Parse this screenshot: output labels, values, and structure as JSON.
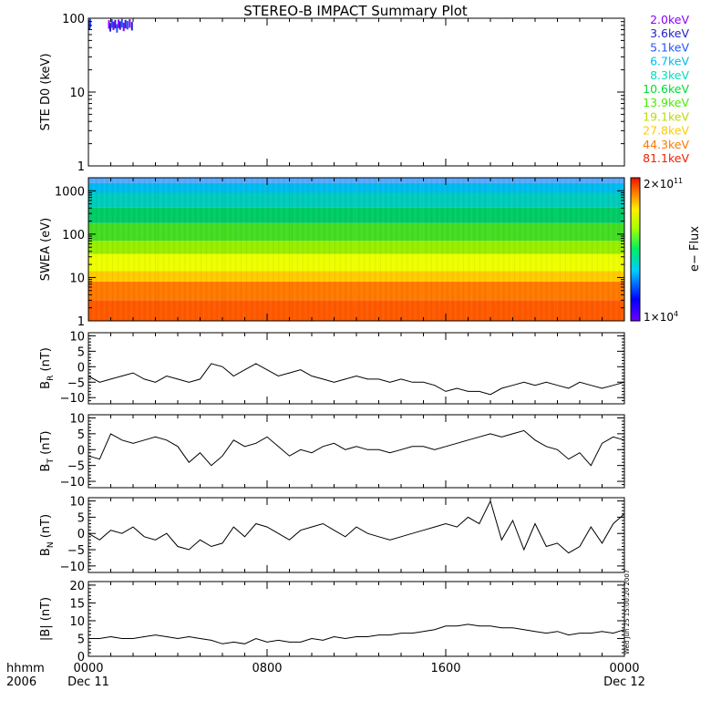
{
  "title": "STEREO-B IMPACT Summary Plot",
  "time_axis": {
    "row1_label": "hhmm",
    "row2_label": "2006",
    "ticks": [
      {
        "hours": 0,
        "label": "0000",
        "date": "Dec 11"
      },
      {
        "hours": 8,
        "label": "0800",
        "date": ""
      },
      {
        "hours": 16,
        "label": "1600",
        "date": ""
      },
      {
        "hours": 24,
        "label": "0000",
        "date": "Dec 12"
      }
    ],
    "range_hours": [
      0,
      24
    ]
  },
  "energy_legend": [
    {
      "label": "2.0keV",
      "color": "#8b00ff"
    },
    {
      "label": "3.6keV",
      "color": "#2222cc"
    },
    {
      "label": "5.1keV",
      "color": "#2255ff"
    },
    {
      "label": "6.7keV",
      "color": "#00bbee"
    },
    {
      "label": "8.3keV",
      "color": "#00ddbb"
    },
    {
      "label": "10.6keV",
      "color": "#00dd33"
    },
    {
      "label": "13.9keV",
      "color": "#44ee00"
    },
    {
      "label": "19.1keV",
      "color": "#bbdd00"
    },
    {
      "label": "27.8keV",
      "color": "#ffcc00"
    },
    {
      "label": "44.3keV",
      "color": "#ff7700"
    },
    {
      "label": "81.1keV",
      "color": "#ee2200"
    }
  ],
  "colorbar": {
    "label": "e− Flux",
    "max_label": "2×10",
    "max_exp": "11",
    "min_label": "1×10",
    "min_exp": "4"
  },
  "stamp": "Wed Jun 25 15:00:20 2007",
  "chart_data": [
    {
      "id": "ste",
      "type": "scatter",
      "ylabel": "STE D0 (keV)",
      "scale": "log",
      "ylim": [
        1,
        100
      ],
      "yticks": [
        {
          "v": 1,
          "t": "1"
        },
        {
          "v": 10,
          "t": "10"
        },
        {
          "v": 100,
          "t": "100"
        }
      ],
      "points": [
        {
          "x": 0.03,
          "y": 96
        },
        {
          "x": 0.05,
          "y": 92
        },
        {
          "x": 0.08,
          "y": 98
        },
        {
          "x": 0.92,
          "y": 94
        },
        {
          "x": 0.98,
          "y": 86
        },
        {
          "x": 1.05,
          "y": 97
        },
        {
          "x": 1.12,
          "y": 90
        },
        {
          "x": 1.2,
          "y": 95
        },
        {
          "x": 1.28,
          "y": 83
        },
        {
          "x": 1.35,
          "y": 96
        },
        {
          "x": 1.42,
          "y": 91
        },
        {
          "x": 1.5,
          "y": 98
        },
        {
          "x": 1.58,
          "y": 87
        },
        {
          "x": 1.66,
          "y": 95
        },
        {
          "x": 1.75,
          "y": 92
        },
        {
          "x": 1.85,
          "y": 97
        },
        {
          "x": 1.95,
          "y": 89
        }
      ]
    },
    {
      "id": "swea",
      "type": "heatmap",
      "ylabel": "SWEA (eV)",
      "scale": "log",
      "ylim": [
        1,
        2000
      ],
      "yticks": [
        {
          "v": 1,
          "t": "1"
        },
        {
          "v": 10,
          "t": "10"
        },
        {
          "v": 100,
          "t": "100"
        },
        {
          "v": 1000,
          "t": "1000"
        }
      ],
      "bands": [
        {
          "e_low": 1,
          "e_high": 3,
          "color": "#ff5a00"
        },
        {
          "e_low": 3,
          "e_high": 8,
          "color": "#ff7a00"
        },
        {
          "e_low": 8,
          "e_high": 14,
          "color": "#ffcc00"
        },
        {
          "e_low": 14,
          "e_high": 35,
          "color": "#eeff00"
        },
        {
          "e_low": 35,
          "e_high": 70,
          "color": "#99ee00"
        },
        {
          "e_low": 70,
          "e_high": 180,
          "color": "#44dd22"
        },
        {
          "e_low": 180,
          "e_high": 420,
          "color": "#00cc66"
        },
        {
          "e_low": 420,
          "e_high": 900,
          "color": "#00ccbb"
        },
        {
          "e_low": 900,
          "e_high": 1500,
          "color": "#00bbee"
        },
        {
          "e_low": 1500,
          "e_high": 2000,
          "color": "#55aaff"
        }
      ]
    },
    {
      "id": "br",
      "type": "line",
      "ylabel": "B",
      "ylabel_sub": "R",
      "ylabel_unit": "(nT)",
      "ylim": [
        -12,
        11
      ],
      "yticks": [
        {
          "v": -10,
          "t": "−10"
        },
        {
          "v": -5,
          "t": "−5"
        },
        {
          "v": 0,
          "t": "0"
        },
        {
          "v": 5,
          "t": "5"
        },
        {
          "v": 10,
          "t": "10"
        }
      ],
      "x": [
        0,
        0.5,
        1,
        1.5,
        2,
        2.5,
        3,
        3.5,
        4,
        4.5,
        5,
        5.5,
        6,
        6.5,
        7,
        7.5,
        8,
        8.5,
        9,
        9.5,
        10,
        10.5,
        11,
        11.5,
        12,
        12.5,
        13,
        13.5,
        14,
        14.5,
        15,
        15.5,
        16,
        16.5,
        17,
        17.5,
        18,
        18.5,
        19,
        19.5,
        20,
        20.5,
        21,
        21.5,
        22,
        22.5,
        23,
        23.5,
        24
      ],
      "values": [
        -3,
        -5,
        -4,
        -3,
        -2,
        -4,
        -5,
        -3,
        -4,
        -5,
        -4,
        1,
        0,
        -3,
        -1,
        1,
        -1,
        -3,
        -2,
        -1,
        -3,
        -4,
        -5,
        -4,
        -3,
        -4,
        -4,
        -5,
        -4,
        -5,
        -5,
        -6,
        -8,
        -7,
        -8,
        -8,
        -9,
        -7,
        -6,
        -5,
        -6,
        -5,
        -6,
        -7,
        -5,
        -6,
        -7,
        -6,
        -5
      ]
    },
    {
      "id": "bt",
      "type": "line",
      "ylabel": "B",
      "ylabel_sub": "T",
      "ylabel_unit": "(nT)",
      "ylim": [
        -12,
        11
      ],
      "yticks": [
        {
          "v": -10,
          "t": "−10"
        },
        {
          "v": -5,
          "t": "−5"
        },
        {
          "v": 0,
          "t": "0"
        },
        {
          "v": 5,
          "t": "5"
        },
        {
          "v": 10,
          "t": "10"
        }
      ],
      "x": [
        0,
        0.5,
        1,
        1.5,
        2,
        2.5,
        3,
        3.5,
        4,
        4.5,
        5,
        5.5,
        6,
        6.5,
        7,
        7.5,
        8,
        8.5,
        9,
        9.5,
        10,
        10.5,
        11,
        11.5,
        12,
        12.5,
        13,
        13.5,
        14,
        14.5,
        15,
        15.5,
        16,
        16.5,
        17,
        17.5,
        18,
        18.5,
        19,
        19.5,
        20,
        20.5,
        21,
        21.5,
        22,
        22.5,
        23,
        23.5,
        24
      ],
      "values": [
        -2,
        -3,
        5,
        3,
        2,
        3,
        4,
        3,
        1,
        -4,
        -1,
        -5,
        -2,
        3,
        1,
        2,
        4,
        1,
        -2,
        0,
        -1,
        1,
        2,
        0,
        1,
        0,
        0,
        -1,
        0,
        1,
        1,
        0,
        1,
        2,
        3,
        4,
        5,
        4,
        5,
        6,
        3,
        1,
        0,
        -3,
        -1,
        -5,
        2,
        4,
        3
      ]
    },
    {
      "id": "bn",
      "type": "line",
      "ylabel": "B",
      "ylabel_sub": "N",
      "ylabel_unit": "(nT)",
      "ylim": [
        -12,
        11
      ],
      "yticks": [
        {
          "v": -10,
          "t": "−10"
        },
        {
          "v": -5,
          "t": "−5"
        },
        {
          "v": 0,
          "t": "0"
        },
        {
          "v": 5,
          "t": "5"
        },
        {
          "v": 10,
          "t": "10"
        }
      ],
      "x": [
        0,
        0.5,
        1,
        1.5,
        2,
        2.5,
        3,
        3.5,
        4,
        4.5,
        5,
        5.5,
        6,
        6.5,
        7,
        7.5,
        8,
        8.5,
        9,
        9.5,
        10,
        10.5,
        11,
        11.5,
        12,
        12.5,
        13,
        13.5,
        14,
        14.5,
        15,
        15.5,
        16,
        16.5,
        17,
        17.5,
        18,
        18.5,
        19,
        19.5,
        20,
        20.5,
        21,
        21.5,
        22,
        22.5,
        23,
        23.5,
        24
      ],
      "values": [
        0,
        -2,
        1,
        0,
        2,
        -1,
        -2,
        0,
        -4,
        -5,
        -2,
        -4,
        -3,
        2,
        -1,
        3,
        2,
        0,
        -2,
        1,
        2,
        3,
        1,
        -1,
        2,
        0,
        -1,
        -2,
        -1,
        0,
        1,
        2,
        3,
        2,
        5,
        3,
        10,
        -2,
        4,
        -5,
        3,
        -4,
        -3,
        -6,
        -4,
        2,
        -3,
        3,
        6
      ]
    },
    {
      "id": "bmag",
      "type": "line",
      "ylabel": "|B| (nT)",
      "ylim": [
        0,
        21
      ],
      "yticks": [
        {
          "v": 0,
          "t": "0"
        },
        {
          "v": 5,
          "t": "5"
        },
        {
          "v": 10,
          "t": "10"
        },
        {
          "v": 15,
          "t": "15"
        },
        {
          "v": 20,
          "t": "20"
        }
      ],
      "x": [
        0,
        0.5,
        1,
        1.5,
        2,
        2.5,
        3,
        3.5,
        4,
        4.5,
        5,
        5.5,
        6,
        6.5,
        7,
        7.5,
        8,
        8.5,
        9,
        9.5,
        10,
        10.5,
        11,
        11.5,
        12,
        12.5,
        13,
        13.5,
        14,
        14.5,
        15,
        15.5,
        16,
        16.5,
        17,
        17.5,
        18,
        18.5,
        19,
        19.5,
        20,
        20.5,
        21,
        21.5,
        22,
        22.5,
        23,
        23.5,
        24
      ],
      "values": [
        5,
        5,
        5.5,
        5,
        5,
        5.5,
        6,
        5.5,
        5,
        5.5,
        5,
        4.5,
        3.5,
        4,
        3.5,
        5,
        4,
        4.5,
        4,
        4,
        5,
        4.5,
        5.5,
        5,
        5.5,
        5.5,
        6,
        6,
        6.5,
        6.5,
        7,
        7.5,
        8.5,
        8.5,
        9,
        8.5,
        8.5,
        8,
        8,
        7.5,
        7,
        6.5,
        7,
        6,
        6.5,
        6.5,
        7,
        6.5,
        7.5
      ]
    }
  ]
}
